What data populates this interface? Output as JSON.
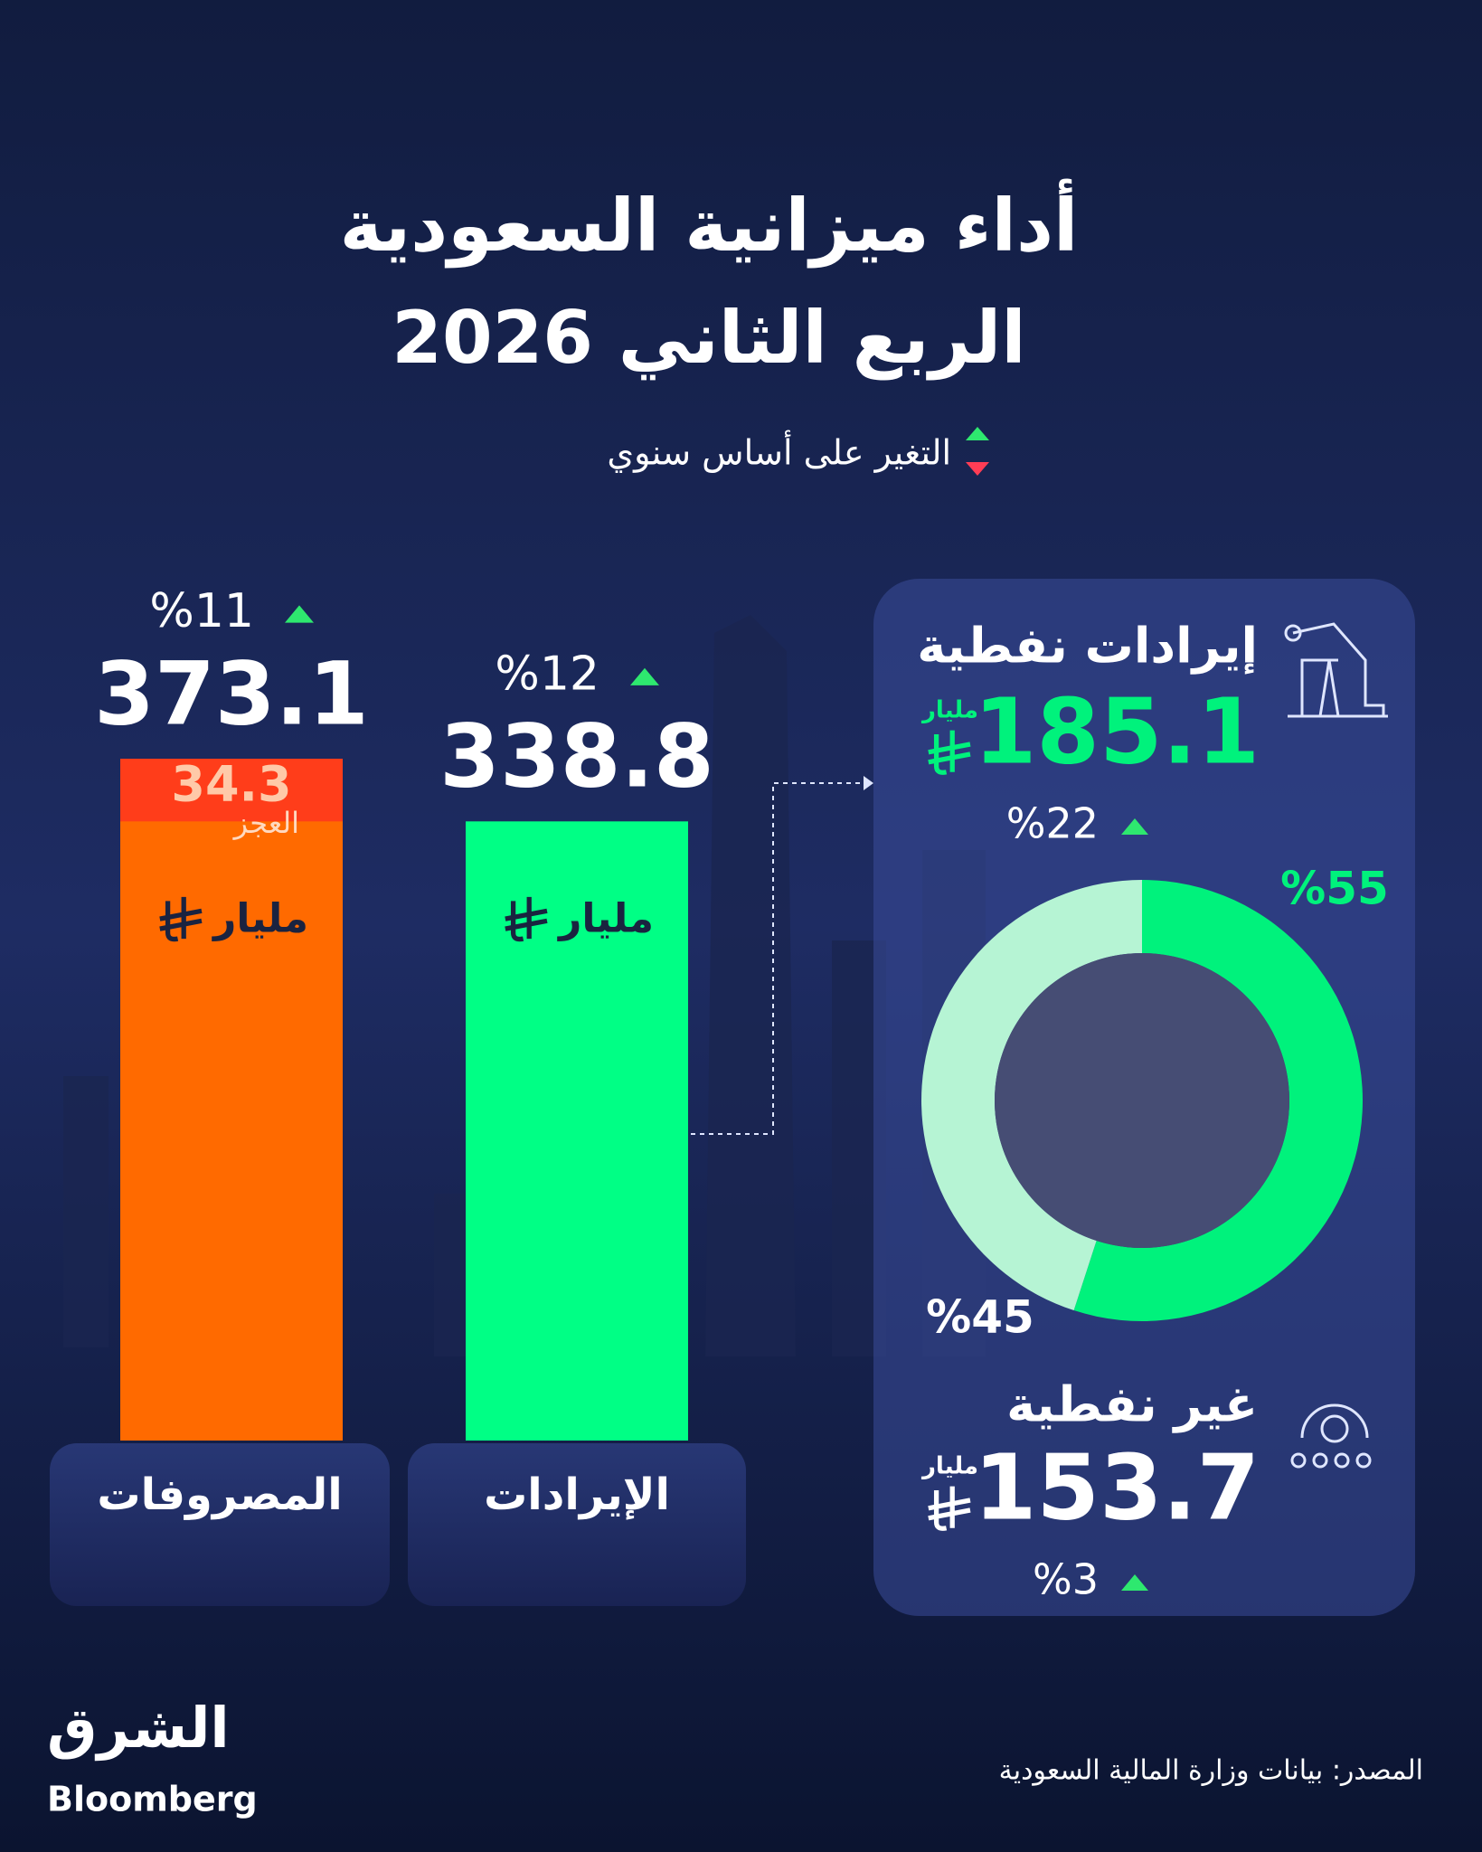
{
  "header": {
    "title_line1": "أداء ميزانية السعودية",
    "title_line2": "الربع الثاني 2026",
    "legend": "التغير على أساس سنوي"
  },
  "chart_data": [
    {
      "type": "bar",
      "categories": [
        "المصروفات",
        "الإيرادات"
      ],
      "values": [
        373.1,
        338.8
      ],
      "colors": [
        "#ff6a00",
        "#00ff85"
      ],
      "change_labels": [
        "%11",
        "%12"
      ],
      "unit": "مليار",
      "deficit": {
        "label": "العجز",
        "value": 34.3,
        "color": "#ff3d1a"
      }
    },
    {
      "type": "pie",
      "donut": true,
      "categories": [
        "إيرادات نفطية",
        "غير نفطية"
      ],
      "values": [
        55,
        45
      ],
      "value_labels": [
        "%55",
        "%45"
      ],
      "colors": [
        "#00f27c",
        "#b6f4d4"
      ],
      "amounts": [
        185.1,
        153.7
      ],
      "amount_changes": [
        "%22",
        "%3"
      ],
      "unit": "مليار"
    }
  ],
  "footer": {
    "source": "المصدر: بيانات وزارة المالية السعودية",
    "logo_ar": "الشرق",
    "logo_en": "Bloomberg"
  }
}
